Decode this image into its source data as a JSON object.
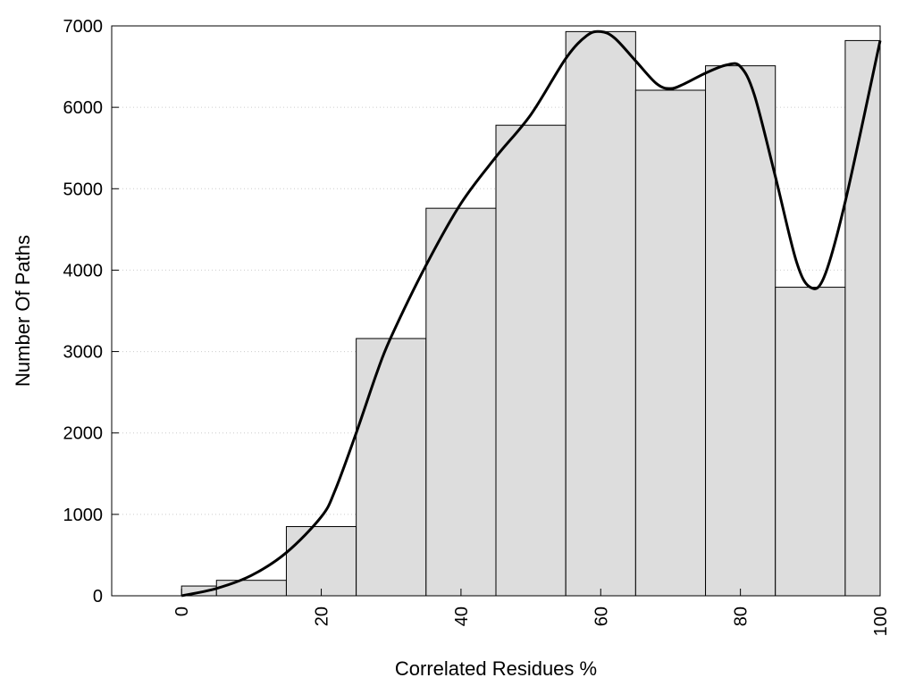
{
  "chart_data": {
    "type": "bar",
    "title": "",
    "xlabel": "Correlated Residues %",
    "ylabel": "Number Of Paths",
    "xlim": [
      -10,
      100
    ],
    "ylim": [
      0,
      7000
    ],
    "x_ticks": [
      0,
      20,
      40,
      60,
      80,
      100
    ],
    "x_tick_labels": [
      "0",
      "20",
      "40",
      "60",
      "80",
      "100"
    ],
    "y_ticks": [
      0,
      1000,
      2000,
      3000,
      4000,
      5000,
      6000,
      7000
    ],
    "y_tick_labels": [
      "0",
      "1000",
      "2000",
      "3000",
      "4000",
      "5000",
      "6000",
      "7000"
    ],
    "grid": "horizontal dotted",
    "legend": "none",
    "bars": [
      {
        "x0": 0,
        "x1": 5,
        "value": 120
      },
      {
        "x0": 5,
        "x1": 15,
        "value": 190
      },
      {
        "x0": 15,
        "x1": 25,
        "value": 850
      },
      {
        "x0": 25,
        "x1": 35,
        "value": 3160
      },
      {
        "x0": 35,
        "x1": 45,
        "value": 4760
      },
      {
        "x0": 45,
        "x1": 55,
        "value": 5780
      },
      {
        "x0": 55,
        "x1": 65,
        "value": 6930
      },
      {
        "x0": 65,
        "x1": 75,
        "value": 6210
      },
      {
        "x0": 75,
        "x1": 85,
        "value": 6510
      },
      {
        "x0": 85,
        "x1": 95,
        "value": 3790
      },
      {
        "x0": 95,
        "x1": 100,
        "value": 6820
      }
    ],
    "curve": {
      "x": [
        0,
        5,
        10,
        15,
        20,
        22,
        25,
        28,
        30,
        35,
        40,
        45,
        50,
        55,
        58,
        60,
        62,
        65,
        68,
        70,
        72,
        75,
        78,
        80,
        82,
        85,
        88,
        90,
        92,
        95,
        100
      ],
      "y": [
        0,
        90,
        250,
        530,
        970,
        1300,
        2000,
        2750,
        3180,
        4060,
        4820,
        5390,
        5910,
        6600,
        6880,
        6930,
        6850,
        6570,
        6290,
        6230,
        6290,
        6420,
        6520,
        6500,
        6150,
        5150,
        4110,
        3790,
        3920,
        4840,
        6820
      ]
    },
    "colors": {
      "bar_fill": "#dddddd",
      "bar_stroke": "#000000",
      "curve": "#000000",
      "grid": "#cccccc"
    }
  }
}
